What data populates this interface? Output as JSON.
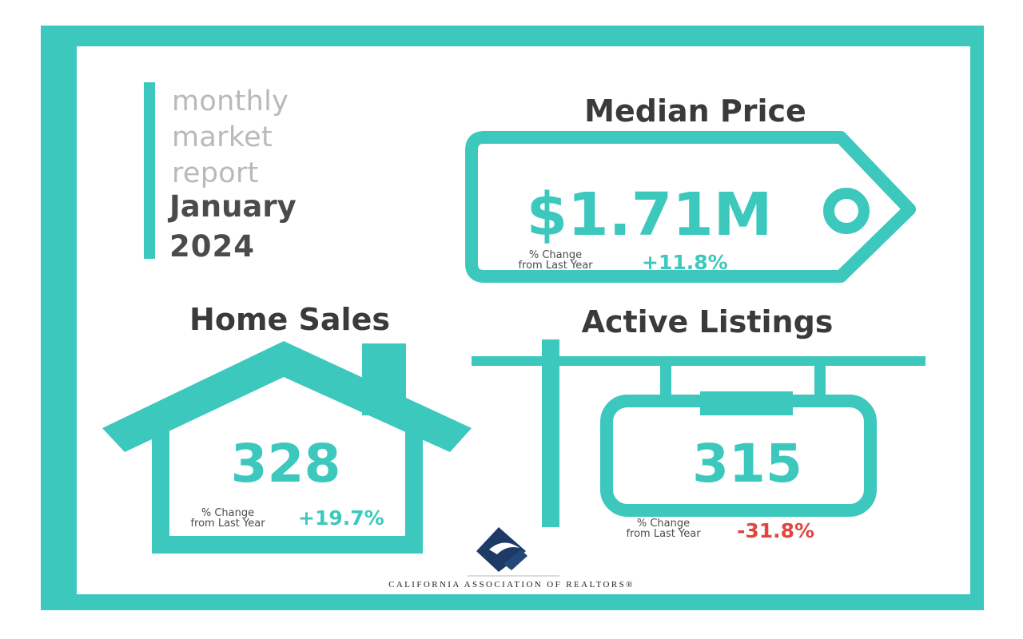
{
  "header": {
    "line1": "monthly",
    "line2": "market",
    "line3": "report",
    "month": "January",
    "year": "2024"
  },
  "median_price": {
    "title": "Median Price",
    "value": "$1.71M",
    "change_label_1": "% Change",
    "change_label_2": "from Last Year",
    "change": "+11.8%"
  },
  "home_sales": {
    "title": "Home Sales",
    "value": "328",
    "change_label_1": "% Change",
    "change_label_2": "from Last Year",
    "change": "+19.7%"
  },
  "active_listings": {
    "title": "Active Listings",
    "value": "315",
    "change_label_1": "% Change",
    "change_label_2": "from Last Year",
    "change": "-31.8%"
  },
  "footer": {
    "org": "CALIFORNIA ASSOCIATION OF REALTORS®",
    "logo_icon": "car-logo-icon"
  },
  "colors": {
    "accent": "#3cc8bd",
    "positive": "#3cc8bd",
    "negative": "#e2453f",
    "dark_text": "#3a3a3a",
    "light_text": "#b9b9b9"
  }
}
